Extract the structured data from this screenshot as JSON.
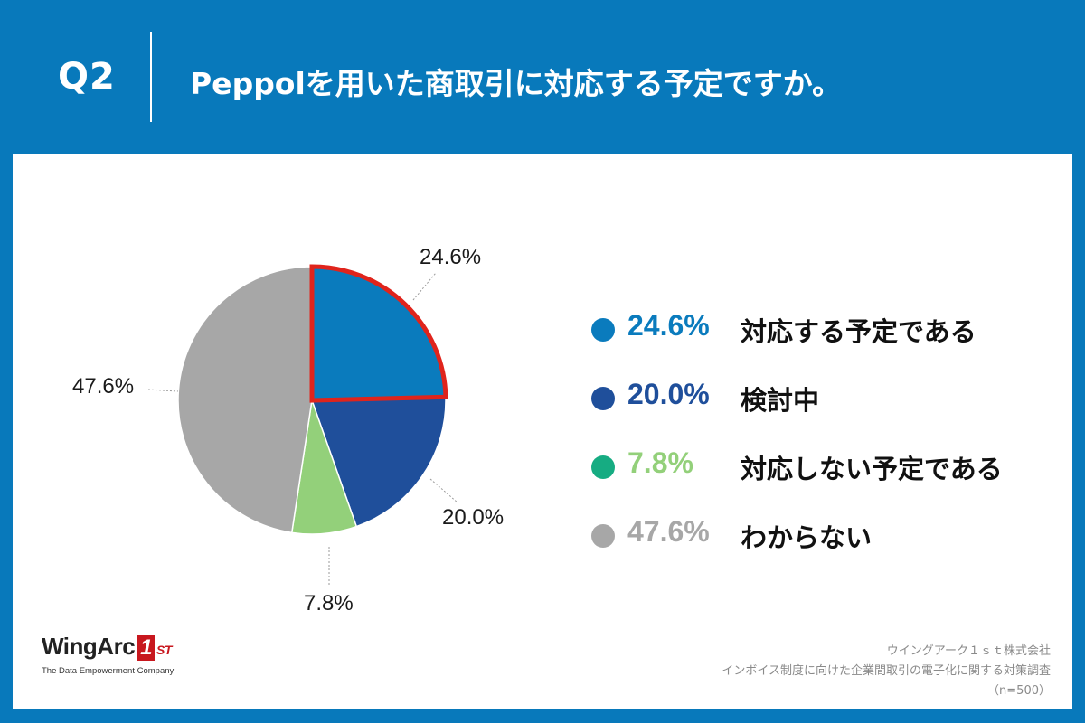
{
  "header": {
    "q_label": "Q2",
    "question": "Peppolを用いた商取引に対応する予定ですか。"
  },
  "chart_data": {
    "type": "pie",
    "start_angle_deg": 0,
    "direction": "clockwise",
    "highlighted_slice": 0,
    "highlight_color": "#e0241c",
    "slices": [
      {
        "label": "対応する予定である",
        "value": 24.6,
        "display": "24.6%",
        "color": "#0a7bbd",
        "legend_text_color": "#0a7bbd",
        "legend_dot_color": "#0a7bbd"
      },
      {
        "label": "検討中",
        "value": 20.0,
        "display": "20.0%",
        "color": "#1f4f9b",
        "legend_text_color": "#1f4f9b",
        "legend_dot_color": "#1f4f9b"
      },
      {
        "label": "対応しない予定である",
        "value": 7.8,
        "display": "7.8%",
        "color": "#93d07a",
        "legend_text_color": "#93d07a",
        "legend_dot_color": "#16ac82"
      },
      {
        "label": "わからない",
        "value": 47.6,
        "display": "47.6%",
        "color": "#a7a7a7",
        "legend_text_color": "#a7a7a7",
        "legend_dot_color": "#a7a7a7"
      }
    ]
  },
  "logo": {
    "name": "WingArc",
    "mark": "1",
    "suffix": "ST",
    "tagline": "The Data Empowerment Company"
  },
  "source": {
    "company": "ウイングアーク１ｓｔ株式会社",
    "survey": "インボイス制度に向けた企業間取引の電子化に関する対策調査",
    "sample": "（n=500）"
  }
}
